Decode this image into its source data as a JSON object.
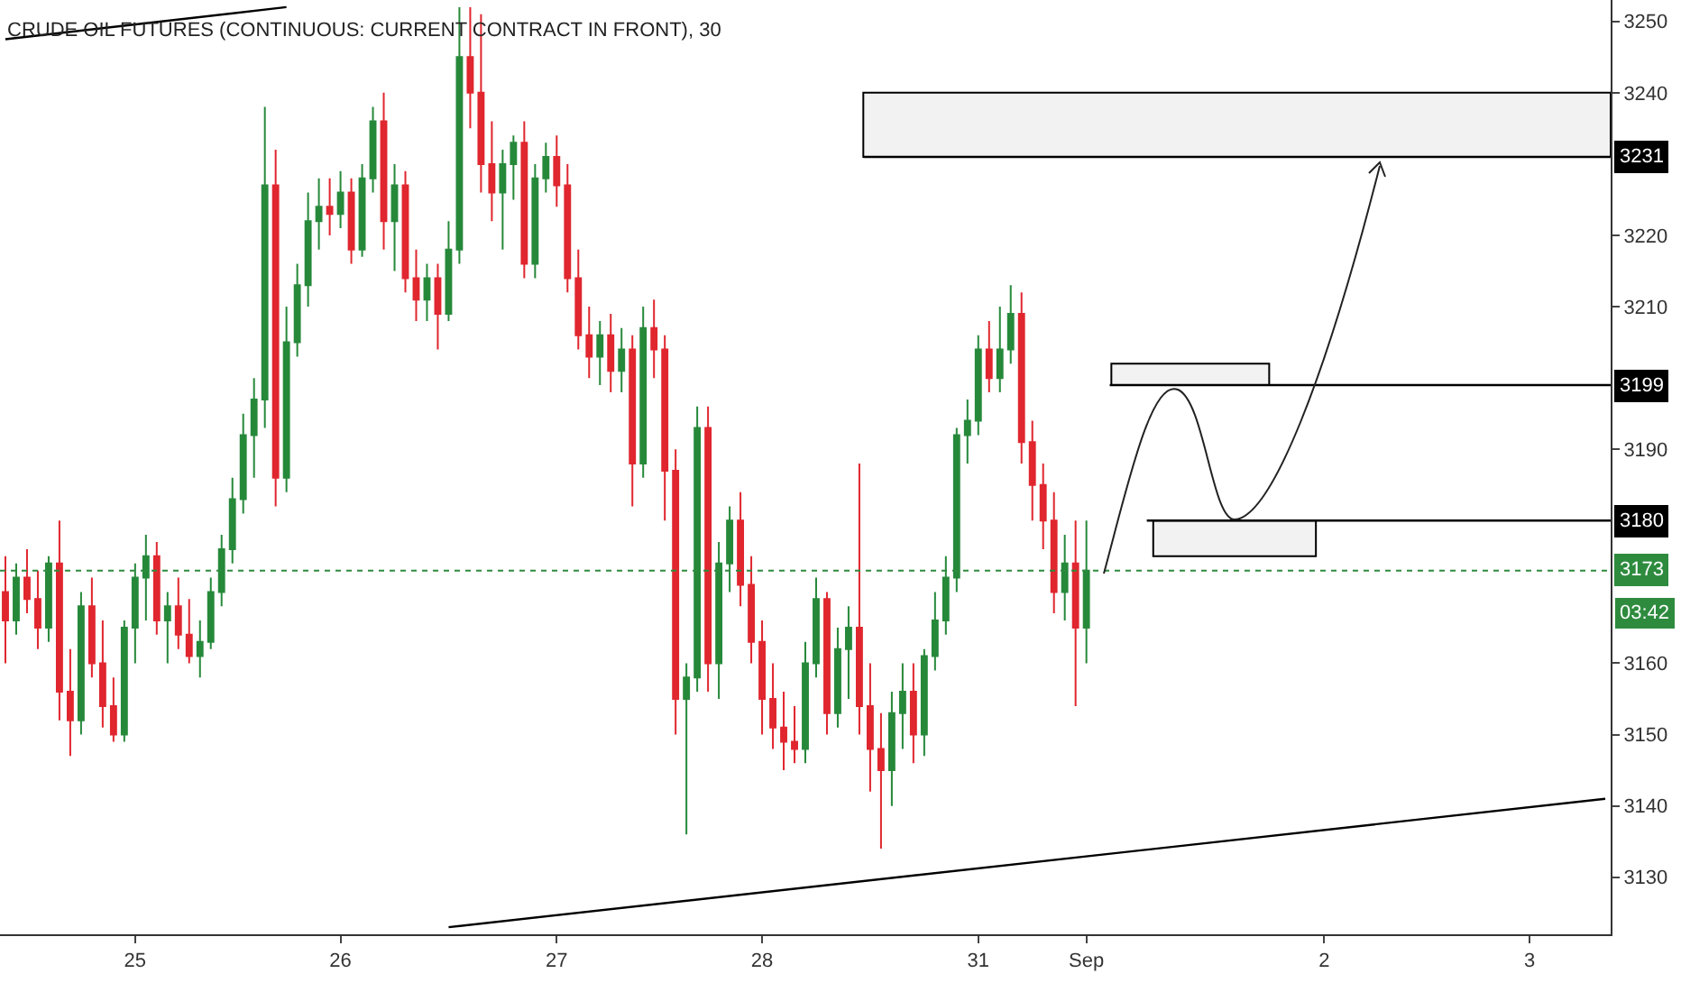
{
  "chart_data": {
    "type": "candlestick",
    "title": "CRUDE OIL FUTURES (CONTINUOUS: CURRENT CONTRACT IN FRONT), 30",
    "categories": [
      null,
      null,
      null,
      null,
      null,
      null,
      null,
      null,
      null,
      null,
      null,
      null,
      "25",
      null,
      null,
      null,
      null,
      null,
      null,
      null,
      null,
      null,
      null,
      null,
      null,
      null,
      null,
      null,
      null,
      null,
      null,
      "26",
      null,
      null,
      null,
      null,
      null,
      null,
      null,
      null,
      null,
      null,
      null,
      null,
      null,
      null,
      null,
      null,
      null,
      null,
      null,
      "27",
      null,
      null,
      null,
      null,
      null,
      null,
      null,
      null,
      null,
      null,
      null,
      null,
      null,
      null,
      null,
      null,
      null,
      null,
      "28",
      null,
      null,
      null,
      null,
      null,
      null,
      null,
      null,
      null,
      null,
      null,
      null,
      null,
      null,
      null,
      null,
      null,
      null,
      null,
      "31",
      null,
      null,
      null,
      null,
      null,
      null,
      null,
      null,
      null,
      "Sep",
      null,
      null,
      null,
      null,
      null,
      null,
      null,
      null,
      null,
      null,
      null,
      null,
      null,
      null,
      null,
      null,
      null,
      null,
      null,
      null,
      null,
      "2",
      null,
      null,
      null,
      null,
      null,
      null,
      null,
      null,
      null,
      null,
      null,
      null,
      null,
      null,
      null,
      null,
      null,
      null,
      "3",
      null,
      null,
      null,
      null,
      null,
      null,
      null
    ],
    "ohlc": [
      [
        3170,
        3175,
        3160,
        3166
      ],
      [
        3166,
        3174,
        3164,
        3172
      ],
      [
        3172,
        3176,
        3167,
        3169
      ],
      [
        3169,
        3173,
        3162,
        3165
      ],
      [
        3165,
        3175,
        3163,
        3174
      ],
      [
        3174,
        3180,
        3152,
        3156
      ],
      [
        3156,
        3162,
        3147,
        3152
      ],
      [
        3152,
        3170,
        3150,
        3168
      ],
      [
        3168,
        3172,
        3158,
        3160
      ],
      [
        3160,
        3166,
        3151,
        3154
      ],
      [
        3154,
        3158,
        3149,
        3150
      ],
      [
        3150,
        3166,
        3149,
        3165
      ],
      [
        3165,
        3174,
        3160,
        3172
      ],
      [
        3172,
        3178,
        3166,
        3175
      ],
      [
        3175,
        3177,
        3164,
        3166
      ],
      [
        3166,
        3170,
        3160,
        3168
      ],
      [
        3168,
        3172,
        3162,
        3164
      ],
      [
        3164,
        3169,
        3160,
        3161
      ],
      [
        3161,
        3166,
        3158,
        3163
      ],
      [
        3163,
        3172,
        3162,
        3170
      ],
      [
        3170,
        3178,
        3168,
        3176
      ],
      [
        3176,
        3186,
        3174,
        3183
      ],
      [
        3183,
        3195,
        3181,
        3192
      ],
      [
        3192,
        3200,
        3186,
        3197
      ],
      [
        3197,
        3238,
        3193,
        3227
      ],
      [
        3227,
        3232,
        3182,
        3186
      ],
      [
        3186,
        3210,
        3184,
        3205
      ],
      [
        3205,
        3216,
        3203,
        3213
      ],
      [
        3213,
        3226,
        3210,
        3222
      ],
      [
        3222,
        3228,
        3218,
        3224
      ],
      [
        3224,
        3228,
        3220,
        3223
      ],
      [
        3223,
        3229,
        3221,
        3226
      ],
      [
        3226,
        3228,
        3216,
        3218
      ],
      [
        3218,
        3230,
        3217,
        3228
      ],
      [
        3228,
        3238,
        3226,
        3236
      ],
      [
        3236,
        3240,
        3218,
        3222
      ],
      [
        3222,
        3230,
        3215,
        3227
      ],
      [
        3227,
        3229,
        3212,
        3214
      ],
      [
        3214,
        3218,
        3208,
        3211
      ],
      [
        3211,
        3216,
        3208,
        3214
      ],
      [
        3214,
        3216,
        3204,
        3209
      ],
      [
        3209,
        3222,
        3208,
        3218
      ],
      [
        3218,
        3252,
        3216,
        3245
      ],
      [
        3245,
        3252,
        3235,
        3240
      ],
      [
        3240,
        3251,
        3226,
        3230
      ],
      [
        3230,
        3236,
        3222,
        3226
      ],
      [
        3226,
        3232,
        3218,
        3230
      ],
      [
        3230,
        3234,
        3225,
        3233
      ],
      [
        3233,
        3236,
        3214,
        3216
      ],
      [
        3216,
        3230,
        3214,
        3228
      ],
      [
        3228,
        3233,
        3226,
        3231
      ],
      [
        3231,
        3234,
        3224,
        3227
      ],
      [
        3227,
        3230,
        3212,
        3214
      ],
      [
        3214,
        3218,
        3204,
        3206
      ],
      [
        3206,
        3210,
        3200,
        3203
      ],
      [
        3203,
        3208,
        3199,
        3206
      ],
      [
        3206,
        3209,
        3198,
        3201
      ],
      [
        3201,
        3207,
        3198,
        3204
      ],
      [
        3204,
        3206,
        3182,
        3188
      ],
      [
        3188,
        3210,
        3186,
        3207
      ],
      [
        3207,
        3211,
        3200,
        3204
      ],
      [
        3204,
        3206,
        3180,
        3187
      ],
      [
        3187,
        3190,
        3150,
        3155
      ],
      [
        3155,
        3160,
        3136,
        3158
      ],
      [
        3158,
        3196,
        3156,
        3193
      ],
      [
        3193,
        3196,
        3156,
        3160
      ],
      [
        3160,
        3177,
        3155,
        3174
      ],
      [
        3174,
        3182,
        3170,
        3180
      ],
      [
        3180,
        3184,
        3168,
        3171
      ],
      [
        3171,
        3175,
        3160,
        3163
      ],
      [
        3163,
        3166,
        3150,
        3155
      ],
      [
        3155,
        3160,
        3148,
        3151
      ],
      [
        3151,
        3156,
        3145,
        3149
      ],
      [
        3149,
        3154,
        3146,
        3148
      ],
      [
        3148,
        3163,
        3146,
        3160
      ],
      [
        3160,
        3172,
        3158,
        3169
      ],
      [
        3169,
        3170,
        3150,
        3153
      ],
      [
        3153,
        3165,
        3151,
        3162
      ],
      [
        3162,
        3168,
        3155,
        3165
      ],
      [
        3165,
        3188,
        3150,
        3154
      ],
      [
        3154,
        3160,
        3142,
        3148
      ],
      [
        3148,
        3153,
        3134,
        3145
      ],
      [
        3145,
        3156,
        3140,
        3153
      ],
      [
        3153,
        3160,
        3148,
        3156
      ],
      [
        3156,
        3160,
        3146,
        3150
      ],
      [
        3150,
        3162,
        3147,
        3161
      ],
      [
        3161,
        3170,
        3159,
        3166
      ],
      [
        3166,
        3175,
        3164,
        3172
      ],
      [
        3172,
        3193,
        3170,
        3192
      ],
      [
        3192,
        3197,
        3188,
        3194
      ],
      [
        3194,
        3206,
        3192,
        3204
      ],
      [
        3204,
        3208,
        3198,
        3200
      ],
      [
        3200,
        3210,
        3198,
        3204
      ],
      [
        3204,
        3213,
        3202,
        3209
      ],
      [
        3209,
        3212,
        3188,
        3191
      ],
      [
        3191,
        3194,
        3180,
        3185
      ],
      [
        3185,
        3188,
        3176,
        3180
      ],
      [
        3180,
        3184,
        3167,
        3170
      ],
      [
        3170,
        3178,
        3166,
        3174
      ],
      [
        3174,
        3180,
        3154,
        3165
      ],
      [
        3165,
        3180,
        3160,
        3173
      ],
      null,
      null,
      null,
      null,
      null,
      null,
      null,
      null,
      null,
      null,
      null,
      null,
      null,
      null,
      null,
      null,
      null,
      null,
      null,
      null,
      null,
      null,
      null,
      null,
      null,
      null,
      null,
      null,
      null,
      null,
      null,
      null,
      null,
      null,
      null,
      null,
      null,
      null,
      null,
      null,
      null,
      null,
      null,
      null,
      null,
      null,
      null,
      null
    ],
    "colors": [
      "#e0262e",
      "#26893a",
      "#e0262e",
      "#e0262e",
      "#26893a",
      "#e0262e",
      "#e0262e",
      "#26893a",
      "#e0262e",
      "#e0262e",
      "#e0262e",
      "#26893a",
      "#26893a",
      "#26893a",
      "#e0262e",
      "#26893a",
      "#e0262e",
      "#e0262e",
      "#26893a",
      "#26893a",
      "#26893a",
      "#26893a",
      "#26893a",
      "#26893a",
      "#26893a",
      "#e0262e",
      "#26893a",
      "#26893a",
      "#26893a",
      "#26893a",
      "#e0262e",
      "#26893a",
      "#e0262e",
      "#26893a",
      "#26893a",
      "#e0262e",
      "#26893a",
      "#e0262e",
      "#e0262e",
      "#26893a",
      "#e0262e",
      "#26893a",
      "#26893a",
      "#e0262e",
      "#e0262e",
      "#e0262e",
      "#26893a",
      "#26893a",
      "#e0262e",
      "#26893a",
      "#26893a",
      "#e0262e",
      "#e0262e",
      "#e0262e",
      "#e0262e",
      "#26893a",
      "#e0262e",
      "#26893a",
      "#e0262e",
      "#26893a",
      "#e0262e",
      "#e0262e",
      "#e0262e",
      "#26893a",
      "#26893a",
      "#e0262e",
      "#26893a",
      "#26893a",
      "#e0262e",
      "#e0262e",
      "#e0262e",
      "#e0262e",
      "#e0262e",
      "#e0262e",
      "#26893a",
      "#26893a",
      "#e0262e",
      "#26893a",
      "#26893a",
      "#e0262e",
      "#e0262e",
      "#e0262e",
      "#26893a",
      "#26893a",
      "#e0262e",
      "#26893a",
      "#26893a",
      "#26893a",
      "#26893a",
      "#26893a",
      "#26893a",
      "#e0262e",
      "#26893a",
      "#26893a",
      "#e0262e",
      "#e0262e",
      "#e0262e",
      "#e0262e",
      "#26893a",
      "#e0262e",
      "#26893a",
      null,
      null,
      null,
      null,
      null,
      null,
      null,
      null,
      null,
      null,
      null,
      null,
      null,
      null,
      null,
      null,
      null,
      null,
      null,
      null,
      null,
      null,
      null,
      null,
      null,
      null,
      null,
      null,
      null,
      null,
      null,
      null,
      null,
      null,
      null,
      null,
      null,
      null,
      null,
      null,
      null,
      null,
      null,
      null,
      null,
      null,
      null,
      null
    ],
    "series": [
      {
        "type": "line",
        "color": "#000000",
        "values": [
          null,
          null,
          null,
          null,
          null,
          null,
          null,
          null,
          null,
          null,
          null,
          null,
          null,
          null,
          null,
          null,
          null,
          null,
          null,
          null,
          null,
          null,
          null,
          null,
          null,
          null,
          null,
          null,
          null,
          null,
          null,
          null,
          null,
          null,
          null,
          null,
          null,
          null,
          null,
          null,
          null,
          3123,
          null,
          null,
          null,
          null,
          null,
          null,
          null,
          null,
          null,
          null,
          null,
          null,
          null,
          null,
          null,
          null,
          null,
          null,
          null,
          null,
          null,
          null,
          null,
          null,
          null,
          null,
          null,
          null,
          null,
          null,
          null,
          null,
          null,
          null,
          null,
          null,
          null,
          null,
          null,
          null,
          null,
          null,
          null,
          null,
          null,
          null,
          null,
          null,
          null,
          null,
          null,
          null,
          null,
          null,
          null,
          null,
          null,
          null,
          null,
          null,
          null,
          null,
          null,
          null,
          null,
          null,
          null,
          null,
          null,
          null,
          null,
          null,
          null,
          null,
          null,
          null,
          null,
          null,
          null,
          null,
          null,
          null,
          null,
          null,
          null,
          null,
          null,
          null,
          null,
          null,
          null,
          null,
          null,
          null,
          null,
          null,
          null,
          null,
          null,
          null,
          null,
          null,
          null,
          null,
          null,
          null,
          3141
        ]
      },
      {
        "type": "line",
        "color": "#000000",
        "values": [
          3247.5,
          null,
          null,
          null,
          null,
          null,
          null,
          null,
          null,
          null,
          null,
          null,
          null,
          null,
          null,
          null,
          null,
          null,
          null,
          null,
          null,
          null,
          null,
          null,
          null,
          null,
          3252,
          null,
          null,
          null,
          null,
          null,
          null,
          null,
          null,
          null,
          null,
          null,
          null,
          null,
          null,
          null,
          null,
          null,
          null,
          null,
          null,
          null,
          null,
          null,
          null,
          null,
          null,
          null,
          null,
          null,
          null,
          null,
          null,
          null,
          null,
          null,
          null,
          null,
          null,
          null,
          null,
          null,
          null,
          null,
          null,
          null,
          null,
          null,
          null,
          null,
          null,
          null,
          null,
          null,
          null,
          null,
          null,
          null,
          null,
          null,
          null,
          null,
          null,
          null,
          null,
          null,
          null,
          null,
          null,
          null,
          null,
          null,
          null,
          null,
          null,
          null,
          null,
          null,
          null,
          null,
          null,
          null,
          null,
          null,
          null,
          null,
          null,
          null,
          null,
          null,
          null,
          null,
          null,
          null,
          null,
          null,
          null,
          null,
          null,
          null,
          null,
          null,
          null,
          null,
          null,
          null,
          null,
          null,
          null,
          null,
          null,
          null,
          null,
          null,
          null,
          null,
          null,
          null,
          null,
          null,
          null,
          null,
          null
        ]
      }
    ],
    "ylim": [
      3122,
      3253
    ],
    "yticks": [
      3130,
      3140,
      3150,
      3160,
      3190,
      3210,
      3220,
      3240,
      3250
    ],
    "ref_lines": [
      {
        "axis": "y",
        "value": 3231,
        "label": "3231",
        "color": "#000000",
        "line_style": "solid"
      },
      {
        "axis": "y",
        "value": 3199,
        "label": "3199",
        "color": "#000000",
        "line_style": "solid"
      },
      {
        "axis": "y",
        "value": 3180,
        "label": "3180",
        "color": "#000000",
        "line_style": "solid"
      },
      {
        "axis": "y",
        "value": 3173,
        "label": "3173",
        "color": "#2e8b3e",
        "line_style": "dotted"
      }
    ],
    "bands": [
      {
        "axis": "y",
        "from": 3231,
        "to": 3240,
        "color": "#f2f2f2"
      },
      {
        "axis": "y",
        "from": 3199,
        "to": 3202,
        "color": "#f2f2f2"
      },
      {
        "axis": "y",
        "from": 3175,
        "to": 3180,
        "color": "#f2f2f2"
      }
    ],
    "annotations": [
      "03:42"
    ],
    "grid": false
  }
}
